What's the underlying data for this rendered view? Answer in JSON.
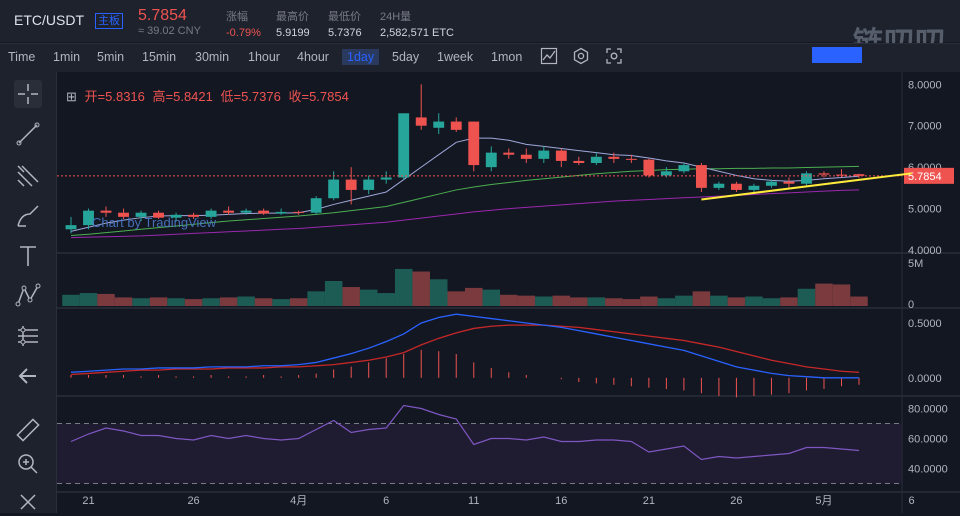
{
  "header": {
    "pair": "ETC/USDT",
    "badge": "主板",
    "price": "5.7854",
    "cny": "≈ 39.02 CNY",
    "stats": [
      {
        "label": "涨幅",
        "value": "-0.79%",
        "red": true
      },
      {
        "label": "最高价",
        "value": "5.9199",
        "red": false
      },
      {
        "label": "最低价",
        "value": "5.7376",
        "red": false
      },
      {
        "label": "24H量",
        "value": "2,582,571 ETC",
        "red": false
      }
    ],
    "watermark": "链叨叨"
  },
  "timeframes": [
    "Time",
    "1min",
    "5min",
    "15min",
    "30min",
    "1hour",
    "4hour",
    "1day",
    "5day",
    "1week",
    "1mon"
  ],
  "active_timeframe": "1day",
  "legend": {
    "open_label": "开=5.8316",
    "high_label": "高=5.8421",
    "low_label": "低=5.7376",
    "close_label": "收=5.7854"
  },
  "tv_watermark": "Chart by TradingView",
  "price_axis": [
    "8.0000",
    "7.0000",
    "6.0000",
    "5.0000",
    "4.0000"
  ],
  "last_price_tag": "5.7854",
  "volume_axis": [
    "5M",
    "0"
  ],
  "macd_axis": [
    "0.5000",
    "0.0000"
  ],
  "rsi_axis": [
    "80.0000",
    "60.0000",
    "40.0000"
  ],
  "date_axis": [
    "21",
    "26",
    "4月",
    "6",
    "11",
    "16",
    "21",
    "26",
    "5月",
    "6"
  ],
  "colors": {
    "up": "#26a69a",
    "down": "#ef5350",
    "bg": "#131722",
    "panel": "#1e222d",
    "accent": "#2962ff",
    "trend": "#ffeb3b"
  },
  "chart_data": {
    "type": "candlestick",
    "candles": [
      {
        "o": 4.5,
        "h": 4.8,
        "l": 4.4,
        "c": 4.6
      },
      {
        "o": 4.6,
        "h": 5.0,
        "l": 4.5,
        "c": 4.95
      },
      {
        "o": 4.95,
        "h": 5.05,
        "l": 4.8,
        "c": 4.9
      },
      {
        "o": 4.9,
        "h": 5.0,
        "l": 4.75,
        "c": 4.8
      },
      {
        "o": 4.8,
        "h": 4.95,
        "l": 4.7,
        "c": 4.9
      },
      {
        "o": 4.9,
        "h": 4.95,
        "l": 4.75,
        "c": 4.78
      },
      {
        "o": 4.78,
        "h": 4.9,
        "l": 4.7,
        "c": 4.85
      },
      {
        "o": 4.85,
        "h": 4.9,
        "l": 4.75,
        "c": 4.8
      },
      {
        "o": 4.8,
        "h": 5.0,
        "l": 4.75,
        "c": 4.95
      },
      {
        "o": 4.95,
        "h": 5.05,
        "l": 4.85,
        "c": 4.9
      },
      {
        "o": 4.9,
        "h": 5.0,
        "l": 4.85,
        "c": 4.95
      },
      {
        "o": 4.95,
        "h": 5.0,
        "l": 4.85,
        "c": 4.88
      },
      {
        "o": 4.88,
        "h": 5.0,
        "l": 4.85,
        "c": 4.92
      },
      {
        "o": 4.92,
        "h": 4.95,
        "l": 4.85,
        "c": 4.9
      },
      {
        "o": 4.9,
        "h": 5.3,
        "l": 4.85,
        "c": 5.25
      },
      {
        "o": 5.25,
        "h": 5.9,
        "l": 5.2,
        "c": 5.7
      },
      {
        "o": 5.7,
        "h": 6.0,
        "l": 5.1,
        "c": 5.45
      },
      {
        "o": 5.45,
        "h": 5.8,
        "l": 5.35,
        "c": 5.7
      },
      {
        "o": 5.7,
        "h": 5.9,
        "l": 5.6,
        "c": 5.75
      },
      {
        "o": 5.75,
        "h": 7.3,
        "l": 5.7,
        "c": 7.3
      },
      {
        "o": 7.2,
        "h": 8.0,
        "l": 6.9,
        "c": 7.0
      },
      {
        "o": 6.95,
        "h": 7.3,
        "l": 6.8,
        "c": 7.1
      },
      {
        "o": 7.1,
        "h": 7.2,
        "l": 6.85,
        "c": 6.9
      },
      {
        "o": 7.1,
        "h": 7.1,
        "l": 5.9,
        "c": 6.05
      },
      {
        "o": 6.0,
        "h": 6.5,
        "l": 5.9,
        "c": 6.35
      },
      {
        "o": 6.35,
        "h": 6.45,
        "l": 6.2,
        "c": 6.3
      },
      {
        "o": 6.3,
        "h": 6.45,
        "l": 6.1,
        "c": 6.2
      },
      {
        "o": 6.2,
        "h": 6.5,
        "l": 6.1,
        "c": 6.4
      },
      {
        "o": 6.4,
        "h": 6.45,
        "l": 6.0,
        "c": 6.15
      },
      {
        "o": 6.15,
        "h": 6.25,
        "l": 6.05,
        "c": 6.1
      },
      {
        "o": 6.1,
        "h": 6.35,
        "l": 6.05,
        "c": 6.25
      },
      {
        "o": 6.25,
        "h": 6.35,
        "l": 6.1,
        "c": 6.2
      },
      {
        "o": 6.2,
        "h": 6.3,
        "l": 6.1,
        "c": 6.18
      },
      {
        "o": 6.18,
        "h": 6.2,
        "l": 5.75,
        "c": 5.8
      },
      {
        "o": 5.8,
        "h": 6.0,
        "l": 5.75,
        "c": 5.9
      },
      {
        "o": 5.9,
        "h": 6.1,
        "l": 5.85,
        "c": 6.05
      },
      {
        "o": 6.05,
        "h": 6.1,
        "l": 5.4,
        "c": 5.5
      },
      {
        "o": 5.5,
        "h": 5.65,
        "l": 5.45,
        "c": 5.6
      },
      {
        "o": 5.6,
        "h": 5.65,
        "l": 5.4,
        "c": 5.45
      },
      {
        "o": 5.45,
        "h": 5.6,
        "l": 5.4,
        "c": 5.55
      },
      {
        "o": 5.55,
        "h": 5.7,
        "l": 5.5,
        "c": 5.65
      },
      {
        "o": 5.65,
        "h": 5.75,
        "l": 5.5,
        "c": 5.6
      },
      {
        "o": 5.6,
        "h": 5.9,
        "l": 5.55,
        "c": 5.85
      },
      {
        "o": 5.85,
        "h": 5.9,
        "l": 5.75,
        "c": 5.82
      },
      {
        "o": 5.82,
        "h": 5.95,
        "l": 5.75,
        "c": 5.8
      },
      {
        "o": 5.83,
        "h": 5.84,
        "l": 5.74,
        "c": 5.79
      }
    ],
    "volume_m": [
      1.3,
      1.5,
      1.4,
      1.0,
      0.9,
      1.0,
      0.9,
      0.8,
      0.9,
      1.0,
      1.1,
      0.9,
      0.8,
      0.9,
      1.7,
      2.9,
      2.2,
      1.9,
      1.5,
      4.3,
      4.0,
      3.1,
      1.7,
      2.1,
      1.9,
      1.3,
      1.2,
      1.1,
      1.2,
      1.0,
      1.0,
      0.9,
      0.8,
      1.1,
      0.9,
      1.2,
      1.7,
      1.2,
      1.0,
      1.1,
      0.9,
      1.0,
      2.0,
      2.6,
      2.5,
      1.1
    ],
    "ma_fast": [
      4.45,
      4.55,
      4.65,
      4.72,
      4.78,
      4.82,
      4.83,
      4.83,
      4.84,
      4.86,
      4.88,
      4.89,
      4.89,
      4.9,
      4.98,
      5.1,
      5.2,
      5.3,
      5.4,
      5.7,
      6.0,
      6.3,
      6.6,
      6.7,
      6.7,
      6.65,
      6.55,
      6.5,
      6.45,
      6.4,
      6.35,
      6.3,
      6.28,
      6.22,
      6.15,
      6.1,
      6.0,
      5.9,
      5.8,
      5.72,
      5.68,
      5.66,
      5.68,
      5.72,
      5.75,
      5.78
    ],
    "ma_mid": [
      4.35,
      4.38,
      4.42,
      4.46,
      4.5,
      4.54,
      4.58,
      4.62,
      4.66,
      4.7,
      4.73,
      4.76,
      4.79,
      4.82,
      4.86,
      4.9,
      4.95,
      5.0,
      5.05,
      5.15,
      5.25,
      5.35,
      5.45,
      5.52,
      5.58,
      5.63,
      5.68,
      5.72,
      5.76,
      5.8,
      5.84,
      5.87,
      5.9,
      5.92,
      5.94,
      5.95,
      5.96,
      5.96,
      5.97,
      5.97,
      5.98,
      5.98,
      5.99,
      6.0,
      6.01,
      6.02
    ],
    "ma_slow": [
      4.3,
      4.31,
      4.32,
      4.33,
      4.34,
      4.36,
      4.38,
      4.4,
      4.42,
      4.44,
      4.46,
      4.48,
      4.5,
      4.52,
      4.55,
      4.58,
      4.61,
      4.64,
      4.67,
      4.72,
      4.77,
      4.82,
      4.87,
      4.92,
      4.96,
      5.0,
      5.03,
      5.06,
      5.09,
      5.12,
      5.15,
      5.18,
      5.2,
      5.22,
      5.24,
      5.26,
      5.28,
      5.3,
      5.32,
      5.34,
      5.36,
      5.38,
      5.4,
      5.42,
      5.44,
      5.45
    ],
    "trendline": [
      {
        "i": 36,
        "v": 5.22
      },
      {
        "i": 48,
        "v": 5.85
      }
    ],
    "macd": [
      0.05,
      0.06,
      0.07,
      0.08,
      0.08,
      0.09,
      0.09,
      0.09,
      0.1,
      0.1,
      0.1,
      0.11,
      0.11,
      0.12,
      0.14,
      0.18,
      0.22,
      0.27,
      0.33,
      0.4,
      0.5,
      0.55,
      0.58,
      0.56,
      0.54,
      0.52,
      0.5,
      0.48,
      0.46,
      0.43,
      0.4,
      0.37,
      0.34,
      0.31,
      0.28,
      0.25,
      0.2,
      0.15,
      0.1,
      0.07,
      0.04,
      0.02,
      0.01,
      0.0,
      0.0,
      0.0
    ],
    "signal": [
      0.03,
      0.04,
      0.05,
      0.06,
      0.07,
      0.07,
      0.08,
      0.08,
      0.08,
      0.09,
      0.09,
      0.09,
      0.1,
      0.1,
      0.11,
      0.12,
      0.14,
      0.16,
      0.19,
      0.23,
      0.3,
      0.36,
      0.41,
      0.45,
      0.47,
      0.48,
      0.48,
      0.48,
      0.47,
      0.46,
      0.44,
      0.42,
      0.4,
      0.38,
      0.36,
      0.34,
      0.31,
      0.28,
      0.24,
      0.2,
      0.16,
      0.13,
      0.1,
      0.08,
      0.06,
      0.05
    ],
    "rsi": [
      58,
      63,
      67,
      65,
      62,
      62,
      60,
      59,
      62,
      60,
      62,
      60,
      59,
      60,
      66,
      72,
      64,
      66,
      67,
      82,
      80,
      76,
      73,
      56,
      60,
      60,
      59,
      61,
      58,
      58,
      59,
      59,
      58,
      51,
      53,
      55,
      46,
      48,
      47,
      48,
      49,
      50,
      54,
      54,
      53,
      52
    ],
    "price_range": [
      4.0,
      8.2
    ],
    "rsi_levels": [
      30,
      70
    ]
  }
}
